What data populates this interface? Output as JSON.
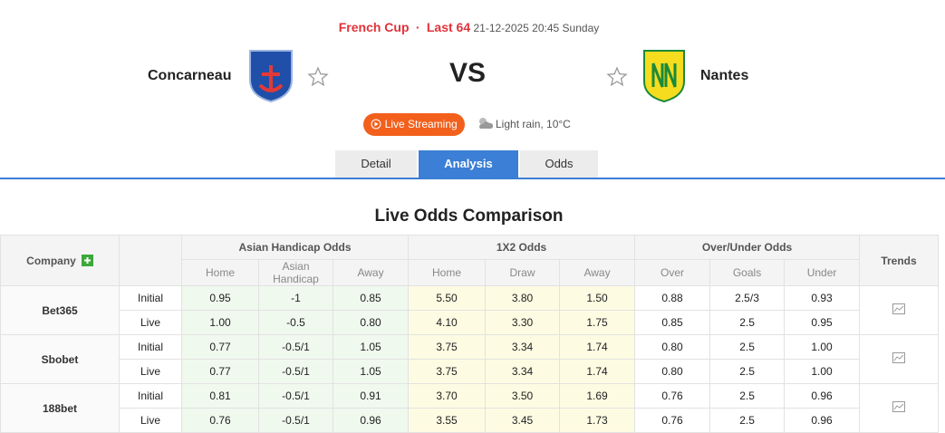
{
  "header": {
    "competition": "French Cup",
    "round": "Last 64",
    "datetime": "21-12-2025 20:45 Sunday",
    "home_team": "Concarneau",
    "vs": "VS",
    "away_team": "Nantes",
    "live_button": "Live Streaming",
    "weather": "Light rain, 10°C"
  },
  "tabs": [
    "Detail",
    "Analysis",
    "Odds"
  ],
  "section_title": "Live Odds Comparison",
  "table": {
    "company_header": "Company",
    "groups": [
      "Asian Handicap Odds",
      "1X2 Odds",
      "Over/Under Odds"
    ],
    "trends_header": "Trends",
    "subheaders": [
      "Home",
      "Asian Handicap",
      "Away",
      "Home",
      "Draw",
      "Away",
      "Over",
      "Goals",
      "Under"
    ],
    "rows": [
      {
        "company": "Bet365",
        "lines": [
          {
            "type": "Initial",
            "cells": [
              "0.95",
              "-1",
              "0.85",
              "5.50",
              "3.80",
              "1.50",
              "0.88",
              "2.5/3",
              "0.93"
            ]
          },
          {
            "type": "Live",
            "cells": [
              "1.00",
              "-0.5",
              "0.80",
              "4.10",
              "3.30",
              "1.75",
              "0.85",
              "2.5",
              "0.95"
            ]
          }
        ]
      },
      {
        "company": "Sbobet",
        "lines": [
          {
            "type": "Initial",
            "cells": [
              "0.77",
              "-0.5/1",
              "1.05",
              "3.75",
              "3.34",
              "1.74",
              "0.80",
              "2.5",
              "1.00"
            ]
          },
          {
            "type": "Live",
            "cells": [
              "0.77",
              "-0.5/1",
              "1.05",
              "3.75",
              "3.34",
              "1.74",
              "0.80",
              "2.5",
              "1.00"
            ]
          }
        ]
      },
      {
        "company": "188bet",
        "lines": [
          {
            "type": "Initial",
            "cells": [
              "0.81",
              "-0.5/1",
              "0.91",
              "3.70",
              "3.50",
              "1.69",
              "0.76",
              "2.5",
              "0.96"
            ]
          },
          {
            "type": "Live",
            "cells": [
              "0.76",
              "-0.5/1",
              "0.96",
              "3.55",
              "3.45",
              "1.73",
              "0.76",
              "2.5",
              "0.96"
            ]
          }
        ]
      }
    ]
  }
}
